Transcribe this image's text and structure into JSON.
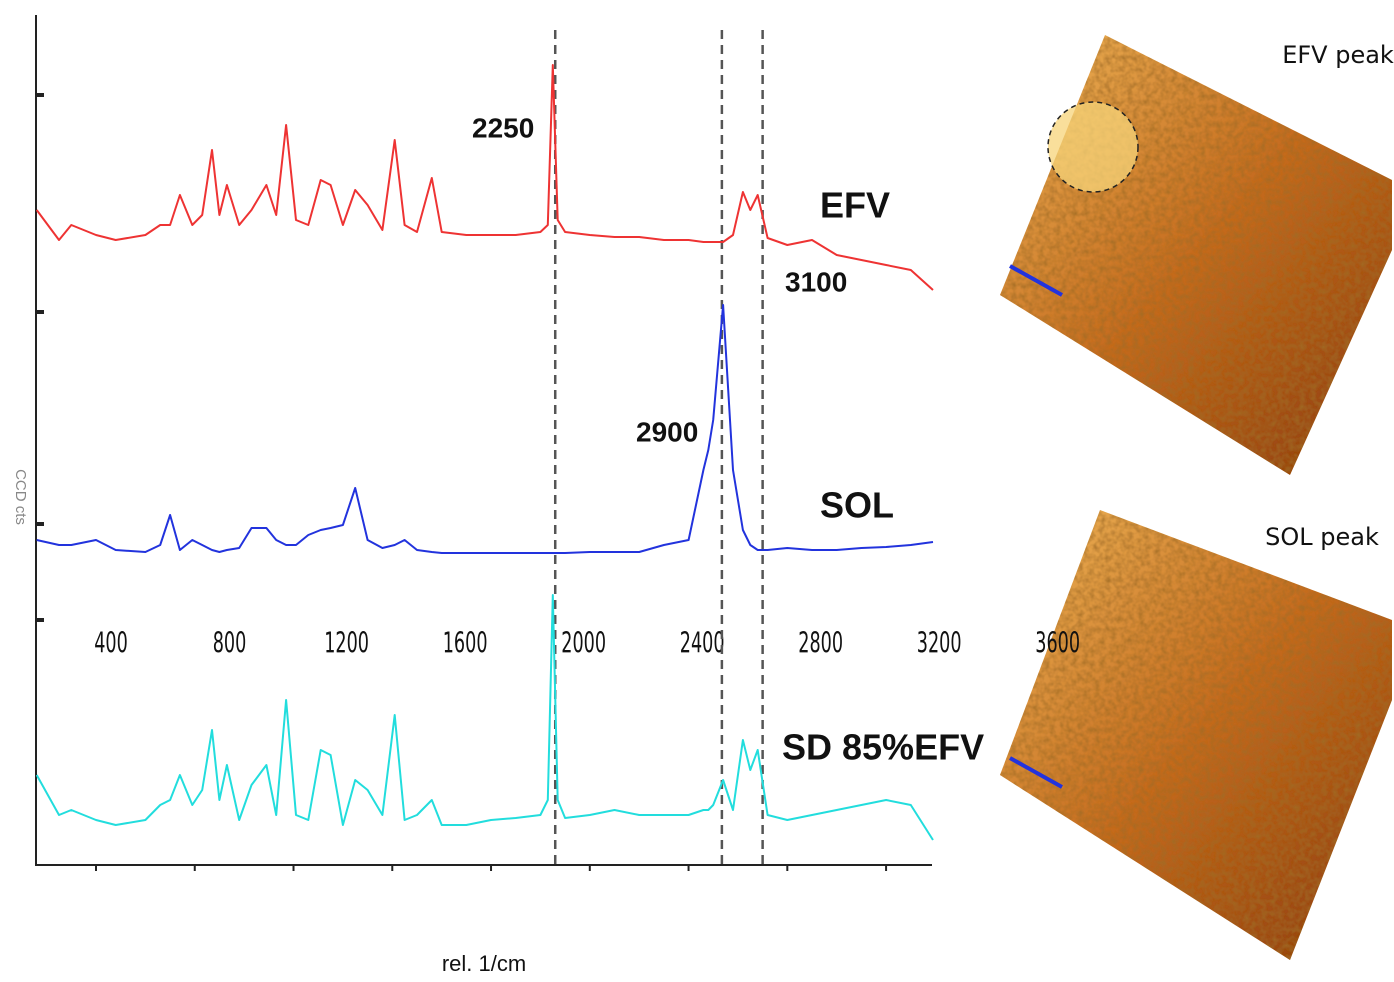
{
  "chart_data": {
    "type": "line",
    "xlabel": "rel. 1/cm",
    "ylabel": "CCD cts",
    "xlim": [
      157,
      3786
    ],
    "ylim": [
      0,
      850
    ],
    "xticks": [
      400,
      800,
      1200,
      1600,
      2000,
      2400,
      2800,
      3200,
      3600
    ],
    "reference_lines": [
      2260,
      2935,
      3100
    ],
    "annotations": [
      "2250",
      "2900",
      "3100"
    ],
    "x": [
      160,
      250,
      300,
      400,
      480,
      600,
      660,
      700,
      740,
      790,
      830,
      870,
      900,
      930,
      980,
      1030,
      1090,
      1130,
      1170,
      1210,
      1260,
      1310,
      1350,
      1400,
      1450,
      1500,
      1560,
      1610,
      1650,
      1700,
      1760,
      1800,
      1900,
      2000,
      2100,
      2200,
      2230,
      2250,
      2270,
      2300,
      2400,
      2500,
      2600,
      2700,
      2800,
      2860,
      2880,
      2900,
      2940,
      2980,
      3020,
      3050,
      3080,
      3120,
      3200,
      3300,
      3400,
      3500,
      3600,
      3700,
      3790
    ],
    "series": [
      {
        "name": "EFV",
        "color": "#ee3333",
        "values": [
          655,
          625,
          640,
          630,
          625,
          630,
          640,
          640,
          670,
          640,
          650,
          715,
          650,
          680,
          640,
          655,
          680,
          650,
          740,
          645,
          640,
          685,
          680,
          640,
          675,
          660,
          635,
          725,
          640,
          633,
          687,
          633,
          630,
          630,
          630,
          633,
          640,
          800,
          645,
          633,
          630,
          628,
          628,
          625,
          625,
          623,
          623,
          623,
          623,
          630,
          673,
          655,
          670,
          627,
          620,
          625,
          610,
          605,
          600,
          595,
          575
        ]
      },
      {
        "name": "SOL",
        "color": "#2233dd",
        "values": [
          325,
          320,
          320,
          325,
          315,
          313,
          320,
          350,
          315,
          325,
          320,
          315,
          313,
          315,
          317,
          337,
          337,
          325,
          320,
          320,
          330,
          335,
          337,
          340,
          377,
          325,
          317,
          320,
          325,
          315,
          313,
          312,
          312,
          312,
          312,
          312,
          312,
          312,
          312,
          312,
          313,
          313,
          313,
          320,
          325,
          395,
          415,
          445,
          560,
          395,
          335,
          320,
          315,
          315,
          317,
          315,
          315,
          317,
          318,
          320,
          323
        ]
      },
      {
        "name": "SD 85%EFV",
        "color": "#22dddd",
        "values": [
          90,
          50,
          55,
          45,
          40,
          45,
          60,
          65,
          90,
          60,
          75,
          135,
          65,
          100,
          45,
          80,
          100,
          50,
          165,
          50,
          45,
          115,
          110,
          40,
          85,
          75,
          50,
          150,
          45,
          50,
          65,
          40,
          40,
          45,
          47,
          50,
          65,
          270,
          65,
          47,
          50,
          55,
          50,
          50,
          50,
          55,
          55,
          60,
          85,
          55,
          125,
          95,
          115,
          50,
          45,
          50,
          55,
          60,
          65,
          60,
          25
        ]
      }
    ]
  },
  "images": [
    {
      "label": "EFV peak"
    },
    {
      "label": "SOL peak"
    }
  ]
}
